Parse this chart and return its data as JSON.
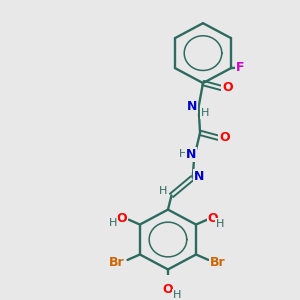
{
  "background_color": "#e8e8e8",
  "bond_color": "#2d6b5e",
  "atom_colors": {
    "O": "#ff0000",
    "N": "#0000cc",
    "Br": "#cc6600",
    "F": "#cc00cc",
    "H_atom": "#2d6b5e",
    "C": "#2d6b5e"
  },
  "figsize": [
    3.0,
    3.0
  ],
  "dpi": 100,
  "xlim": [
    0,
    10
  ],
  "ylim": [
    0,
    10
  ]
}
